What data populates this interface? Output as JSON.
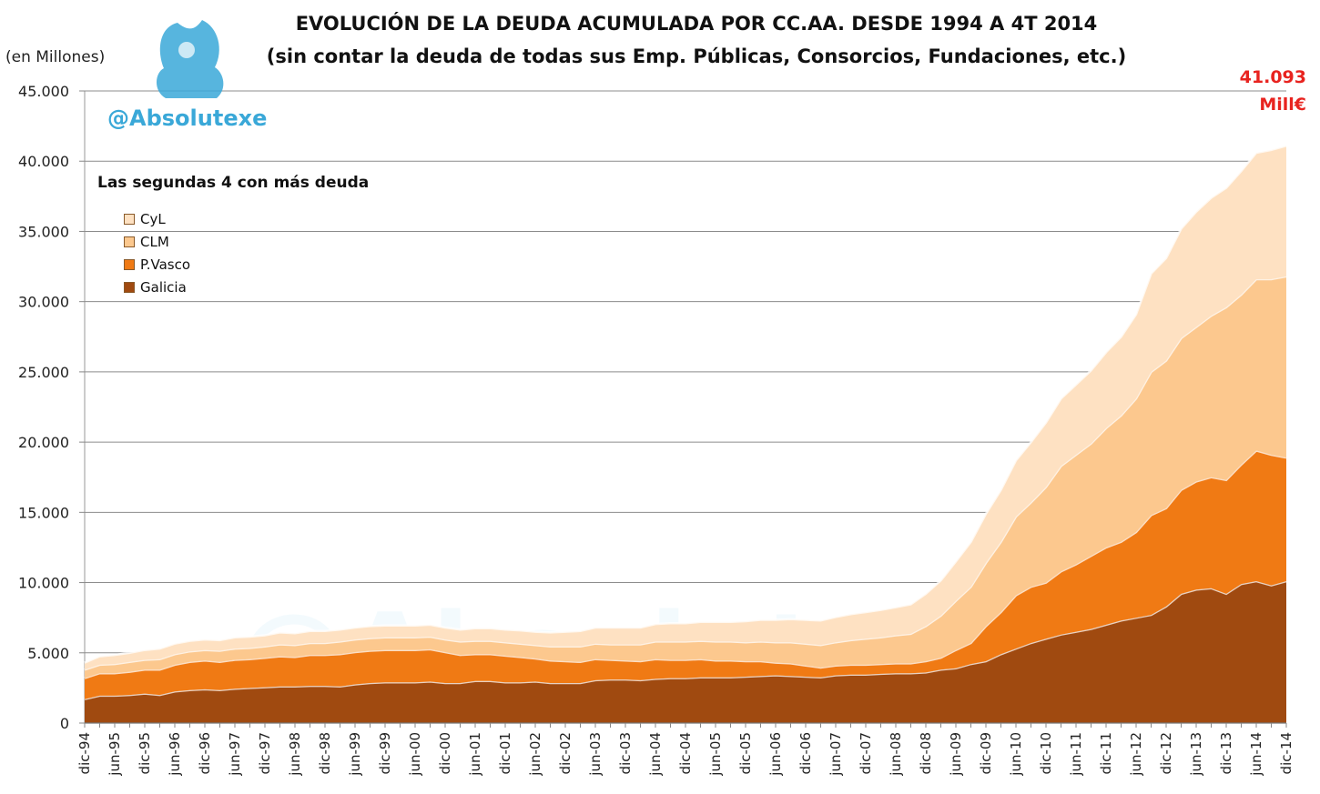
{
  "title": "EVOLUCIÓN DE LA DEUDA ACUMULADA POR CC.AA. DESDE 1994 A 4T 2014",
  "subtitle": "(sin contar la deuda de todas sus Emp. Públicas, Consorcios, Fundaciones, etc.)",
  "unit_label": "(en Millones)",
  "handle": "@Absolutexe",
  "watermark": "@Absolutexe",
  "total_annotation": {
    "value": "41.093",
    "unit": "Mill€",
    "color": "#e8231f"
  },
  "legend_title": "Las segundas 4 con más deuda",
  "chart_data": {
    "type": "area",
    "stacked": true,
    "ylim": [
      0,
      45000
    ],
    "yticks": [
      0,
      5000,
      10000,
      15000,
      20000,
      25000,
      30000,
      35000,
      40000,
      45000
    ],
    "ytick_labels": [
      "0",
      "5.000",
      "10.000",
      "15.000",
      "20.000",
      "25.000",
      "30.000",
      "35.000",
      "40.000",
      "45.000"
    ],
    "grid": true,
    "legend_position": "top-left",
    "x": [
      "dic-94",
      "mar-95",
      "jun-95",
      "sep-95",
      "dic-95",
      "mar-96",
      "jun-96",
      "sep-96",
      "dic-96",
      "mar-97",
      "jun-97",
      "sep-97",
      "dic-97",
      "mar-98",
      "jun-98",
      "sep-98",
      "dic-98",
      "mar-99",
      "jun-99",
      "sep-99",
      "dic-99",
      "mar-00",
      "jun-00",
      "sep-00",
      "dic-00",
      "mar-01",
      "jun-01",
      "sep-01",
      "dic-01",
      "mar-02",
      "jun-02",
      "sep-02",
      "dic-02",
      "mar-03",
      "jun-03",
      "sep-03",
      "dic-03",
      "mar-04",
      "jun-04",
      "sep-04",
      "dic-04",
      "mar-05",
      "jun-05",
      "sep-05",
      "dic-05",
      "mar-06",
      "jun-06",
      "sep-06",
      "dic-06",
      "mar-07",
      "jun-07",
      "sep-07",
      "dic-07",
      "mar-08",
      "jun-08",
      "sep-08",
      "dic-08",
      "mar-09",
      "jun-09",
      "sep-09",
      "dic-09",
      "mar-10",
      "jun-10",
      "sep-10",
      "dic-10",
      "mar-11",
      "jun-11",
      "sep-11",
      "dic-11",
      "mar-12",
      "jun-12",
      "sep-12",
      "dic-12",
      "mar-13",
      "jun-13",
      "sep-13",
      "dic-13",
      "mar-14",
      "jun-14",
      "sep-14",
      "dic-14"
    ],
    "x_tick_labels": [
      "dic-94",
      "jun-95",
      "dic-95",
      "jun-96",
      "dic-96",
      "jun-97",
      "dic-97",
      "jun-98",
      "dic-98",
      "jun-99",
      "dic-99",
      "jun-00",
      "dic-00",
      "jun-01",
      "dic-01",
      "jun-02",
      "dic-02",
      "jun-03",
      "dic-03",
      "jun-04",
      "dic-04",
      "jun-05",
      "dic-05",
      "jun-06",
      "dic-06",
      "jun-07",
      "dic-07",
      "jun-08",
      "dic-08",
      "jun-09",
      "dic-09",
      "jun-10",
      "dic-10",
      "jun-11",
      "dic-11",
      "jun-12",
      "dic-12",
      "jun-13",
      "dic-13",
      "jun-14",
      "dic-14"
    ],
    "series": [
      {
        "name": "Galicia",
        "color": "#a04a10",
        "values": [
          1700,
          1950,
          1950,
          2000,
          2100,
          2000,
          2250,
          2350,
          2400,
          2350,
          2450,
          2500,
          2550,
          2600,
          2600,
          2650,
          2650,
          2600,
          2750,
          2850,
          2900,
          2900,
          2900,
          2950,
          2850,
          2850,
          3000,
          3000,
          2900,
          2900,
          2950,
          2850,
          2850,
          2850,
          3050,
          3100,
          3100,
          3050,
          3150,
          3200,
          3200,
          3250,
          3250,
          3250,
          3300,
          3350,
          3400,
          3350,
          3300,
          3250,
          3400,
          3450,
          3450,
          3500,
          3550,
          3550,
          3600,
          3800,
          3900,
          4200,
          4400,
          4900,
          5300,
          5700,
          6000,
          6300,
          6500,
          6700,
          7000,
          7300,
          7500,
          7700,
          8300,
          9200,
          9500,
          9600,
          9200,
          9900,
          10100,
          9800,
          10100
        ]
      },
      {
        "name": "P.Vasco",
        "color": "#f07a14",
        "values": [
          1500,
          1600,
          1600,
          1650,
          1700,
          1800,
          1900,
          2000,
          2050,
          2000,
          2050,
          2050,
          2100,
          2150,
          2100,
          2200,
          2200,
          2300,
          2300,
          2300,
          2300,
          2300,
          2300,
          2300,
          2200,
          2000,
          1900,
          1900,
          1900,
          1800,
          1650,
          1600,
          1550,
          1500,
          1500,
          1400,
          1350,
          1350,
          1400,
          1300,
          1300,
          1300,
          1200,
          1200,
          1100,
          1050,
          900,
          900,
          800,
          700,
          700,
          700,
          700,
          700,
          700,
          700,
          800,
          850,
          1300,
          1500,
          2500,
          3000,
          3800,
          4000,
          4000,
          4500,
          4800,
          5200,
          5500,
          5600,
          6100,
          7100,
          7000,
          7400,
          7700,
          7900,
          8100,
          8500,
          9300,
          9300,
          8800
        ]
      },
      {
        "name": "CLM",
        "color": "#fcc88e",
        "values": [
          600,
          600,
          650,
          700,
          700,
          750,
          750,
          750,
          750,
          800,
          800,
          800,
          800,
          850,
          850,
          850,
          850,
          900,
          900,
          900,
          900,
          900,
          900,
          900,
          900,
          950,
          950,
          950,
          950,
          950,
          950,
          1000,
          1050,
          1100,
          1100,
          1100,
          1150,
          1200,
          1250,
          1300,
          1300,
          1300,
          1350,
          1350,
          1350,
          1400,
          1450,
          1500,
          1550,
          1600,
          1650,
          1750,
          1850,
          1900,
          2000,
          2100,
          2500,
          3000,
          3500,
          4000,
          4500,
          5000,
          5600,
          6000,
          6800,
          7500,
          7800,
          8000,
          8500,
          9000,
          9500,
          10200,
          10500,
          10800,
          11000,
          11500,
          12300,
          12100,
          12200,
          12500,
          12900
        ]
      },
      {
        "name": "CyL",
        "color": "#fee1c2",
        "values": [
          500,
          600,
          650,
          650,
          700,
          750,
          750,
          750,
          750,
          750,
          800,
          800,
          800,
          850,
          850,
          850,
          850,
          850,
          850,
          850,
          850,
          850,
          850,
          850,
          850,
          850,
          900,
          900,
          900,
          950,
          950,
          1000,
          1050,
          1100,
          1150,
          1200,
          1200,
          1200,
          1250,
          1300,
          1300,
          1350,
          1400,
          1400,
          1500,
          1550,
          1600,
          1650,
          1700,
          1750,
          1800,
          1850,
          1900,
          1950,
          2000,
          2100,
          2300,
          2500,
          2800,
          3200,
          3500,
          3700,
          4000,
          4300,
          4600,
          4800,
          5000,
          5200,
          5400,
          5600,
          6000,
          7000,
          7300,
          7800,
          8200,
          8400,
          8500,
          8800,
          9000,
          9200,
          9293
        ]
      }
    ]
  }
}
